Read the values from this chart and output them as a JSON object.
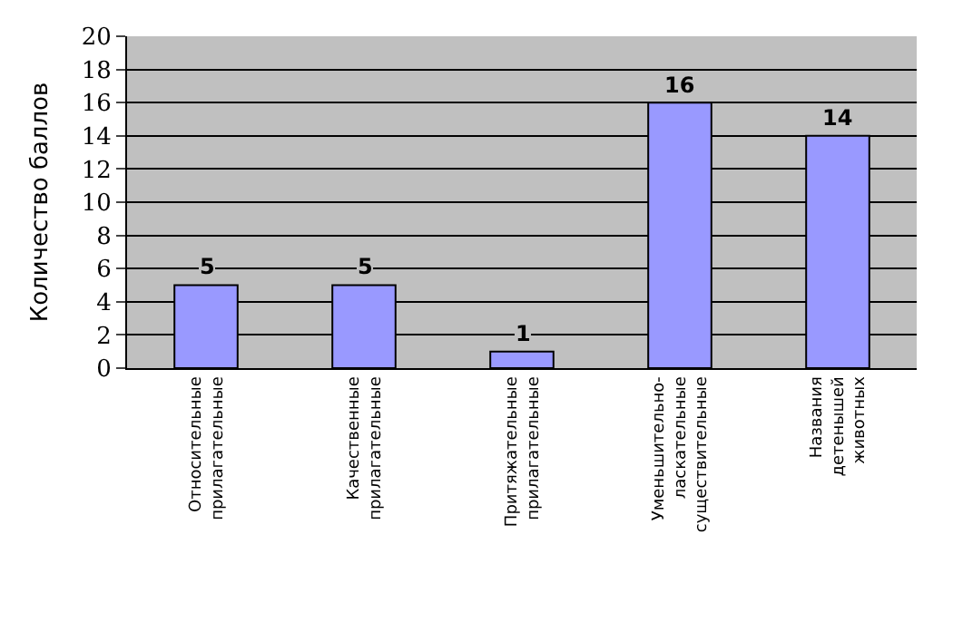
{
  "chart_data": {
    "type": "bar",
    "ylabel": "Количество баллов",
    "categories": [
      "Относительные\nприлагательные",
      "Качественные\nприлагательные",
      "Притяжательные\nприлагательные",
      "Уменьшительно-\nласкательные\nсуществительные",
      "Названия\nдетенышей\nживотных"
    ],
    "values": [
      5,
      5,
      1,
      16,
      14
    ],
    "color": "#9999ff",
    "ylim": [
      0,
      20
    ],
    "yticks": [
      0,
      2,
      4,
      6,
      8,
      10,
      12,
      14,
      16,
      18,
      20
    ],
    "grid": "y",
    "data_labels": true
  }
}
